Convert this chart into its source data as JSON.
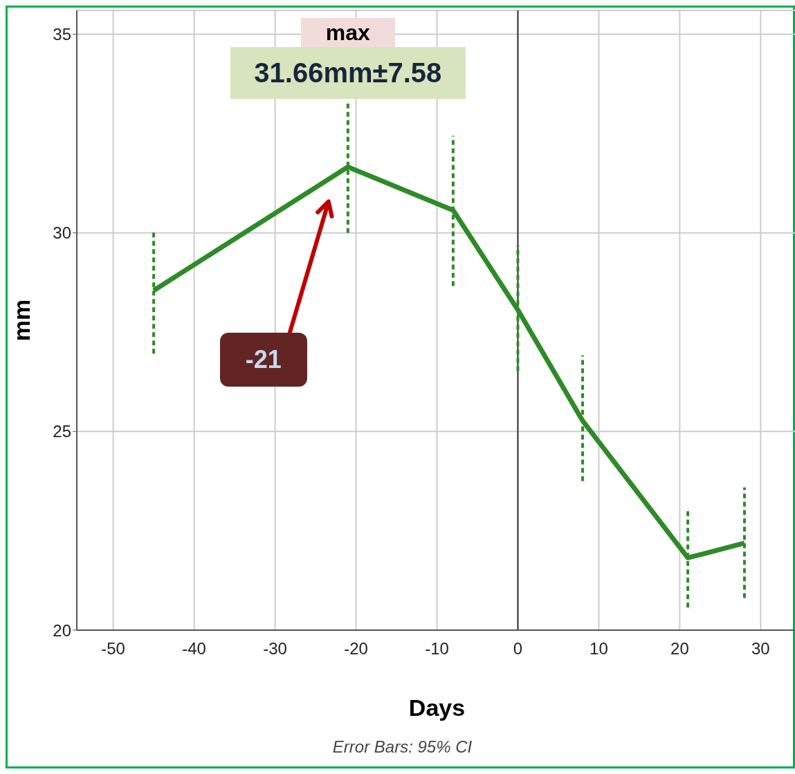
{
  "chart_data": {
    "type": "line",
    "xlabel": "Days",
    "ylabel": "mm",
    "x": [
      -45,
      -21,
      -8,
      0,
      8,
      21,
      28
    ],
    "series": [
      {
        "color": "#2e8b28",
        "values": [
          28.55,
          31.66,
          30.57,
          28.06,
          25.27,
          21.82,
          22.19
        ],
        "errors": [
          [
            26.96,
            30.05
          ],
          [
            30.0,
            33.3
          ],
          [
            28.66,
            32.44
          ],
          [
            26.52,
            29.68
          ],
          [
            23.75,
            26.91
          ],
          [
            20.57,
            23.04
          ],
          [
            20.81,
            23.59
          ]
        ]
      }
    ],
    "xlim": [
      -54.5,
      34.5
    ],
    "xticks": [
      -50,
      -40,
      -30,
      -20,
      -10,
      0,
      10,
      20,
      30
    ],
    "ylim": [
      20,
      35.6
    ],
    "yticks": [
      20,
      25,
      30,
      35
    ],
    "grid": true,
    "marker": "none",
    "line_style": "solid",
    "ref_lines": [
      {
        "axis": "x",
        "value": 0,
        "color": "#333333"
      }
    ],
    "annotations": [
      "max",
      "31.66mm±7.58",
      "-21",
      "Error Bars: 95% CI"
    ]
  }
}
